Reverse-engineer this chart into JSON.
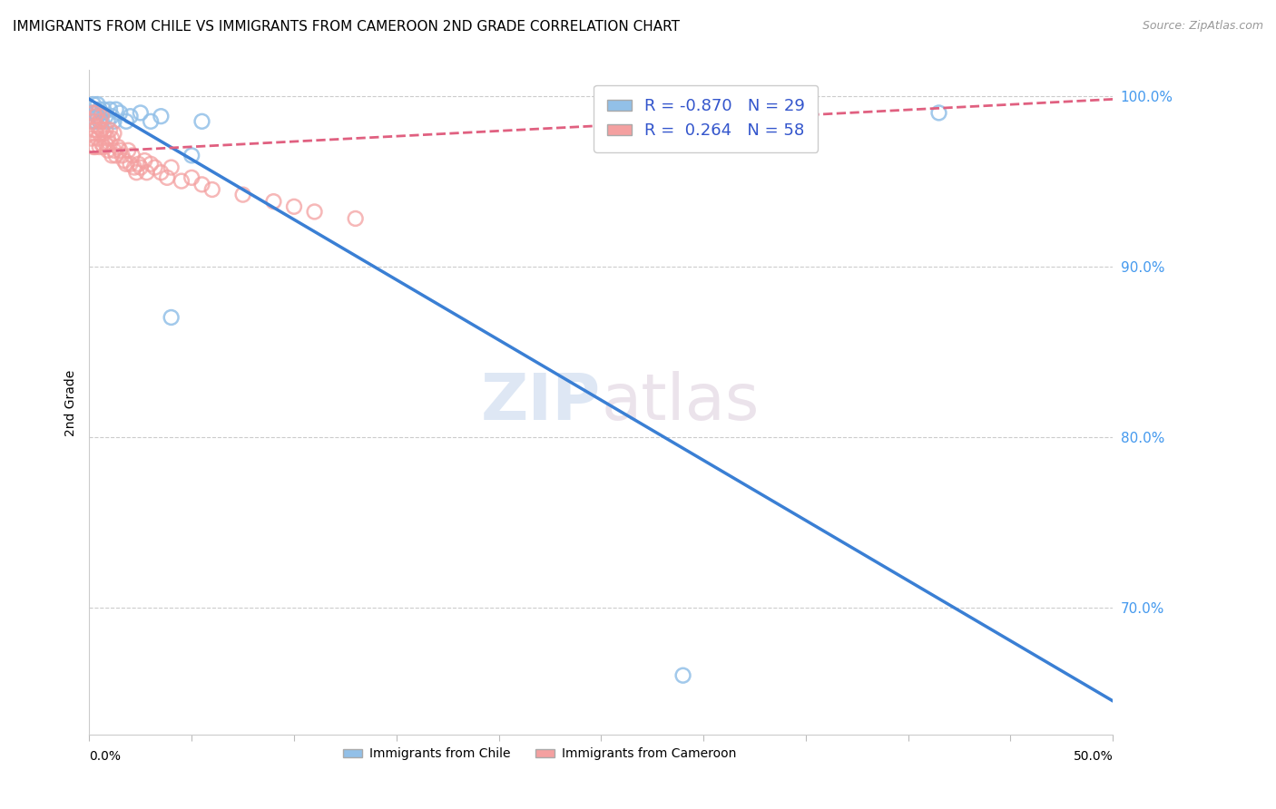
{
  "title": "IMMIGRANTS FROM CHILE VS IMMIGRANTS FROM CAMEROON 2ND GRADE CORRELATION CHART",
  "source": "Source: ZipAtlas.com",
  "ylabel": "2nd Grade",
  "xlim": [
    0.0,
    0.5
  ],
  "ylim": [
    0.625,
    1.015
  ],
  "yticks": [
    0.7,
    0.8,
    0.9,
    1.0
  ],
  "ytick_labels": [
    "70.0%",
    "80.0%",
    "90.0%",
    "100.0%"
  ],
  "chile_R": -0.87,
  "chile_N": 29,
  "cameroon_R": 0.264,
  "cameroon_N": 58,
  "chile_color": "#92c0e8",
  "cameroon_color": "#f4a0a0",
  "chile_line_color": "#3a7fd4",
  "cameroon_line_color": "#e06080",
  "watermark": "ZIPatlas",
  "chile_scatter_x": [
    0.001,
    0.002,
    0.002,
    0.003,
    0.003,
    0.004,
    0.004,
    0.005,
    0.005,
    0.006,
    0.006,
    0.007,
    0.008,
    0.009,
    0.01,
    0.011,
    0.012,
    0.013,
    0.015,
    0.018,
    0.02,
    0.025,
    0.03,
    0.035,
    0.04,
    0.05,
    0.055,
    0.29,
    0.415
  ],
  "chile_scatter_y": [
    0.99,
    0.985,
    0.995,
    0.99,
    0.985,
    0.995,
    0.988,
    0.992,
    0.985,
    0.99,
    0.985,
    0.992,
    0.988,
    0.985,
    0.992,
    0.988,
    0.985,
    0.992,
    0.99,
    0.985,
    0.988,
    0.99,
    0.985,
    0.988,
    0.87,
    0.965,
    0.985,
    0.66,
    0.99
  ],
  "cameroon_scatter_x": [
    0.001,
    0.001,
    0.002,
    0.002,
    0.002,
    0.003,
    0.003,
    0.003,
    0.004,
    0.004,
    0.004,
    0.005,
    0.005,
    0.005,
    0.006,
    0.006,
    0.006,
    0.007,
    0.007,
    0.008,
    0.008,
    0.009,
    0.009,
    0.01,
    0.01,
    0.011,
    0.011,
    0.012,
    0.012,
    0.013,
    0.014,
    0.015,
    0.016,
    0.017,
    0.018,
    0.019,
    0.02,
    0.021,
    0.022,
    0.023,
    0.024,
    0.025,
    0.027,
    0.028,
    0.03,
    0.032,
    0.035,
    0.038,
    0.04,
    0.045,
    0.05,
    0.055,
    0.06,
    0.075,
    0.09,
    0.1,
    0.11,
    0.13
  ],
  "cameroon_scatter_y": [
    0.975,
    0.985,
    0.97,
    0.98,
    0.99,
    0.97,
    0.98,
    0.988,
    0.975,
    0.982,
    0.99,
    0.97,
    0.978,
    0.985,
    0.972,
    0.98,
    0.988,
    0.97,
    0.978,
    0.972,
    0.98,
    0.968,
    0.975,
    0.972,
    0.98,
    0.965,
    0.975,
    0.968,
    0.978,
    0.965,
    0.97,
    0.968,
    0.965,
    0.962,
    0.96,
    0.968,
    0.96,
    0.965,
    0.958,
    0.955,
    0.96,
    0.958,
    0.962,
    0.955,
    0.96,
    0.958,
    0.955,
    0.952,
    0.958,
    0.95,
    0.952,
    0.948,
    0.945,
    0.942,
    0.938,
    0.935,
    0.932,
    0.928
  ],
  "chile_line_x": [
    0.0,
    0.5
  ],
  "chile_line_y": [
    0.998,
    0.645
  ],
  "cameroon_line_x": [
    0.0,
    0.5
  ],
  "cameroon_line_y": [
    0.967,
    0.998
  ]
}
